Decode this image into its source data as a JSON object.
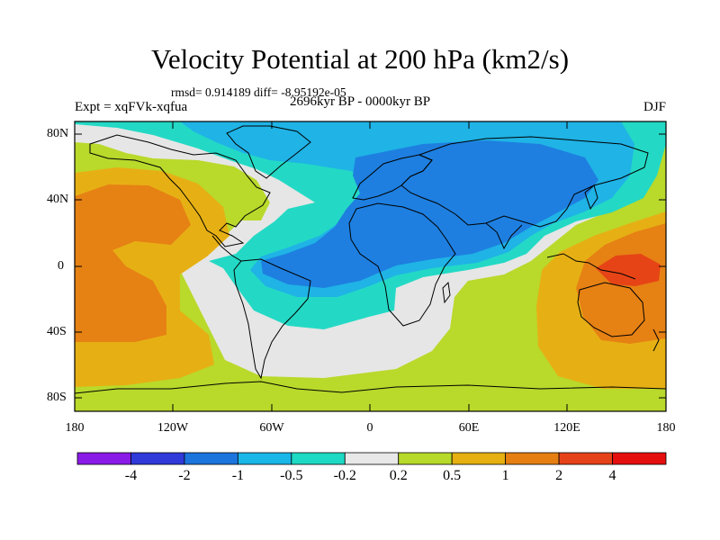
{
  "title": "Velocity Potential at 200 hPa (km2/s)",
  "stats_line": "rmsd= 0.914189 diff= -8.95192e-05",
  "experiment": "Expt = xqFVk-xqfua",
  "period": "2696kyr BP - 0000kyr BP",
  "season": "DJF",
  "y_axis_labels": [
    "80N",
    "40N",
    "0",
    "40S",
    "80S"
  ],
  "x_axis_labels": [
    "180",
    "120W",
    "60W",
    "0",
    "60E",
    "120E",
    "180"
  ],
  "colorbar": {
    "labels": [
      "-4",
      "-2",
      "-1",
      "-0.5",
      "-0.2",
      "0.2",
      "0.5",
      "1",
      "2",
      "4"
    ],
    "colors": [
      "#8a1ae6",
      "#2f3ad9",
      "#1c74dd",
      "#19b6e8",
      "#1ed9c3",
      "#e8e8e8",
      "#b7d92a",
      "#e6b012",
      "#e67f12",
      "#e6421a",
      "#e60f0f"
    ]
  },
  "fill_colors": {
    "neg_1": "#1e7fe0",
    "neg_05": "#1fb3e6",
    "neg_02": "#23d9c5",
    "neutral": "#e6e6e6",
    "pos_02": "#b9d92b",
    "pos_05": "#e6b014",
    "pos_1": "#e68114",
    "pos_2": "#e64416"
  }
}
